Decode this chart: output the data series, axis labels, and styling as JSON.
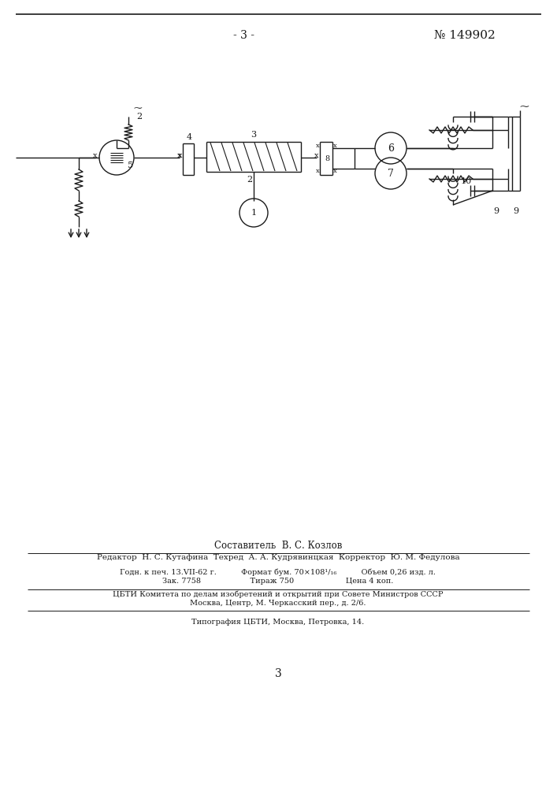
{
  "page_number_top": "- 3 -",
  "patent_number": "№ 149902",
  "composer_text": "Составитель  В. С. Козлов",
  "editor_line": "Редактор  Н. С. Кутафина  Техред  А. А. Кудрявинцкая  Корректор  Ю. М. Федулова",
  "line1": "Годн. к печ. 13.VII-62 г.          Формат бум. 70×108¹/₁₆          Объем 0,26 изд. л.",
  "line2": "Зак. 7758                    Тираж 750                     Цена 4 коп.",
  "line3": "ЦБТИ Комитета по делам изобретений и открытий при Совете Министров СССР",
  "line4": "Москва, Центр, М. Черкасский пер., д. 2/6.",
  "line5": "Типография ЦБТИ, Москва, Петровка, 14.",
  "page_number_bottom": "3",
  "bg_color": "#ffffff",
  "line_color": "#1a1a1a",
  "text_color": "#1a1a1a"
}
